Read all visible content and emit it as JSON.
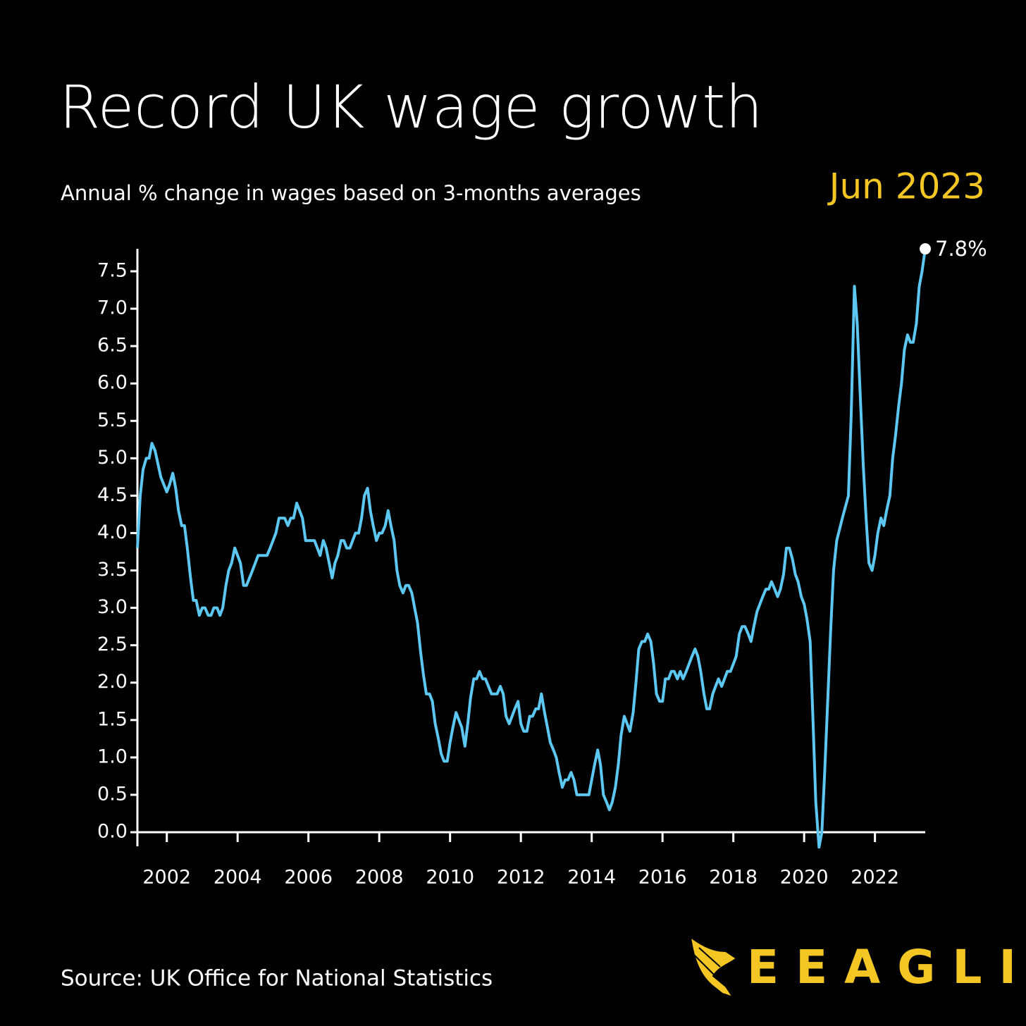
{
  "chart_data": {
    "type": "line",
    "title": "Record UK wage growth",
    "subtitle": "Annual % change in wages based on 3-months averages",
    "date_label": "Jun 2023",
    "annotation": "7.8%",
    "source": "Source: UK Office for National Statistics",
    "brand": "EEAGLI",
    "color": "#5cc8f2",
    "x": [
      2001.17,
      2001.25,
      2001.33,
      2001.42,
      2001.5,
      2001.58,
      2001.67,
      2001.83,
      2002.0,
      2002.08,
      2002.17,
      2002.25,
      2002.33,
      2002.42,
      2002.5,
      2002.58,
      2002.67,
      2002.75,
      2002.83,
      2002.92,
      2003.0,
      2003.08,
      2003.17,
      2003.25,
      2003.33,
      2003.42,
      2003.5,
      2003.58,
      2003.67,
      2003.75,
      2003.83,
      2003.92,
      2004.0,
      2004.08,
      2004.17,
      2004.25,
      2004.42,
      2004.58,
      2004.83,
      2004.92,
      2005.08,
      2005.17,
      2005.33,
      2005.42,
      2005.5,
      2005.58,
      2005.67,
      2005.83,
      2005.92,
      2006.17,
      2006.25,
      2006.33,
      2006.42,
      2006.5,
      2006.67,
      2006.75,
      2006.83,
      2006.92,
      2007.0,
      2007.08,
      2007.17,
      2007.33,
      2007.42,
      2007.5,
      2007.58,
      2007.67,
      2007.75,
      2007.83,
      2007.92,
      2008.0,
      2008.08,
      2008.17,
      2008.25,
      2008.33,
      2008.42,
      2008.5,
      2008.58,
      2008.67,
      2008.75,
      2008.83,
      2008.92,
      2009.0,
      2009.08,
      2009.17,
      2009.25,
      2009.33,
      2009.42,
      2009.5,
      2009.58,
      2009.67,
      2009.75,
      2009.83,
      2009.92,
      2010.0,
      2010.08,
      2010.17,
      2010.25,
      2010.33,
      2010.42,
      2010.5,
      2010.58,
      2010.67,
      2010.75,
      2010.83,
      2010.92,
      2011.0,
      2011.17,
      2011.33,
      2011.42,
      2011.5,
      2011.58,
      2011.67,
      2011.75,
      2011.83,
      2011.92,
      2012.0,
      2012.08,
      2012.17,
      2012.25,
      2012.33,
      2012.42,
      2012.5,
      2012.58,
      2012.67,
      2012.75,
      2012.83,
      2012.92,
      2013.0,
      2013.08,
      2013.17,
      2013.25,
      2013.33,
      2013.42,
      2013.5,
      2013.58,
      2013.75,
      2013.92,
      2014.0,
      2014.08,
      2014.17,
      2014.25,
      2014.33,
      2014.42,
      2014.5,
      2014.58,
      2014.67,
      2014.75,
      2014.83,
      2014.92,
      2015.0,
      2015.08,
      2015.17,
      2015.25,
      2015.33,
      2015.42,
      2015.5,
      2015.58,
      2015.67,
      2015.75,
      2015.83,
      2015.92,
      2016.0,
      2016.08,
      2016.17,
      2016.25,
      2016.33,
      2016.42,
      2016.5,
      2016.58,
      2016.67,
      2016.83,
      2016.92,
      2017.0,
      2017.08,
      2017.17,
      2017.25,
      2017.33,
      2017.42,
      2017.5,
      2017.58,
      2017.67,
      2017.75,
      2017.83,
      2017.92,
      2018.0,
      2018.08,
      2018.17,
      2018.25,
      2018.33,
      2018.42,
      2018.5,
      2018.58,
      2018.67,
      2018.83,
      2018.92,
      2019.0,
      2019.08,
      2019.17,
      2019.25,
      2019.33,
      2019.42,
      2019.5,
      2019.58,
      2019.67,
      2019.75,
      2019.83,
      2019.92,
      2020.0,
      2020.08,
      2020.17,
      2020.25,
      2020.33,
      2020.42,
      2020.5,
      2020.58,
      2020.67,
      2020.75,
      2020.83,
      2020.92,
      2021.08,
      2021.25,
      2021.33,
      2021.42,
      2021.5,
      2021.58,
      2021.67,
      2021.75,
      2021.83,
      2021.92,
      2022.0,
      2022.08,
      2022.17,
      2022.25,
      2022.33,
      2022.42,
      2022.5,
      2022.58,
      2022.67,
      2022.75,
      2022.83,
      2022.92,
      2023.0,
      2023.08,
      2023.17,
      2023.25,
      2023.33,
      2023.42
    ],
    "values": [
      3.8,
      4.5,
      4.85,
      5.0,
      5.0,
      5.2,
      5.1,
      4.75,
      4.55,
      4.65,
      4.8,
      4.6,
      4.3,
      4.1,
      4.1,
      3.8,
      3.4,
      3.1,
      3.1,
      2.9,
      3.0,
      3.0,
      2.9,
      2.9,
      3.0,
      3.0,
      2.9,
      3.0,
      3.3,
      3.5,
      3.6,
      3.8,
      3.7,
      3.6,
      3.3,
      3.3,
      3.5,
      3.7,
      3.7,
      3.8,
      4.0,
      4.2,
      4.2,
      4.1,
      4.2,
      4.2,
      4.4,
      4.2,
      3.9,
      3.9,
      3.8,
      3.7,
      3.9,
      3.8,
      3.4,
      3.6,
      3.7,
      3.9,
      3.9,
      3.8,
      3.8,
      4.0,
      4.0,
      4.2,
      4.5,
      4.6,
      4.3,
      4.1,
      3.9,
      4.0,
      4.0,
      4.1,
      4.3,
      4.1,
      3.9,
      3.5,
      3.3,
      3.2,
      3.3,
      3.3,
      3.2,
      3.0,
      2.8,
      2.4,
      2.1,
      1.85,
      1.85,
      1.75,
      1.45,
      1.25,
      1.05,
      0.95,
      0.95,
      1.2,
      1.4,
      1.6,
      1.5,
      1.4,
      1.15,
      1.45,
      1.8,
      2.05,
      2.05,
      2.15,
      2.05,
      2.05,
      1.85,
      1.85,
      1.95,
      1.85,
      1.55,
      1.45,
      1.55,
      1.65,
      1.75,
      1.45,
      1.35,
      1.35,
      1.55,
      1.55,
      1.65,
      1.65,
      1.85,
      1.6,
      1.4,
      1.2,
      1.1,
      1.0,
      0.8,
      0.6,
      0.7,
      0.7,
      0.8,
      0.7,
      0.5,
      0.5,
      0.5,
      0.7,
      0.9,
      1.1,
      0.9,
      0.5,
      0.4,
      0.3,
      0.4,
      0.6,
      0.9,
      1.3,
      1.55,
      1.45,
      1.35,
      1.6,
      2.0,
      2.45,
      2.55,
      2.55,
      2.65,
      2.55,
      2.25,
      1.85,
      1.75,
      1.75,
      2.05,
      2.05,
      2.15,
      2.15,
      2.05,
      2.15,
      2.05,
      2.15,
      2.35,
      2.45,
      2.35,
      2.15,
      1.85,
      1.65,
      1.65,
      1.85,
      1.95,
      2.05,
      1.95,
      2.05,
      2.15,
      2.15,
      2.25,
      2.35,
      2.65,
      2.75,
      2.75,
      2.65,
      2.55,
      2.75,
      2.95,
      3.15,
      3.25,
      3.25,
      3.35,
      3.25,
      3.15,
      3.25,
      3.45,
      3.8,
      3.8,
      3.65,
      3.45,
      3.35,
      3.15,
      3.05,
      2.85,
      2.55,
      1.5,
      0.4,
      -0.2,
      0.0,
      0.8,
      1.8,
      2.7,
      3.5,
      3.9,
      4.2,
      4.5,
      5.6,
      7.3,
      6.8,
      5.9,
      4.9,
      4.2,
      3.6,
      3.5,
      3.7,
      4.0,
      4.2,
      4.1,
      4.3,
      4.5,
      5.0,
      5.3,
      5.7,
      6.0,
      6.45,
      6.65,
      6.55,
      6.55,
      6.8,
      7.3,
      7.5,
      7.8
    ],
    "xlim": [
      2001.17,
      2023.42
    ],
    "xticks": [
      2002,
      2004,
      2006,
      2008,
      2010,
      2012,
      2014,
      2016,
      2018,
      2020,
      2022
    ],
    "ylim": [
      0,
      7.5
    ],
    "yticks": [
      {
        "value": 0,
        "label": "0.0"
      },
      0.5,
      {
        "value": 1,
        "label": "1.0"
      },
      1.5,
      {
        "value": 2,
        "label": "2.0"
      },
      2.5,
      {
        "value": 3,
        "label": "3.0"
      },
      3.5,
      {
        "value": 4,
        "label": "4.0"
      },
      4.5,
      {
        "value": 5,
        "label": "5.0"
      },
      5.5,
      {
        "value": 6,
        "label": "6.0"
      },
      6.5,
      {
        "value": 7,
        "label": "7.0"
      },
      7.5
    ]
  }
}
